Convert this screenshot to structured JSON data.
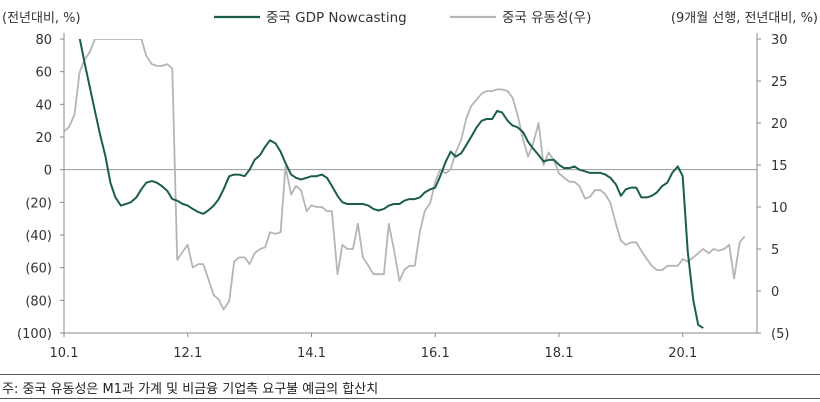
{
  "chart_data": {
    "type": "line",
    "left_axis_label": "(전년대비, %)",
    "right_axis_label": "(9개월 선행, 전년대비, %)",
    "x_tick_labels": [
      "10.1",
      "12.1",
      "14.1",
      "16.1",
      "18.1",
      "20.1"
    ],
    "x_range": [
      2010.0,
      2021.2
    ],
    "y_left_ticks": [
      "80",
      "60",
      "40",
      "20",
      "0",
      "(20)",
      "(40)",
      "(60)",
      "(80)",
      "(100)"
    ],
    "y_left_range": [
      -100,
      80
    ],
    "y_right_ticks": [
      "30",
      "25",
      "20",
      "15",
      "10",
      "5",
      "0",
      "(5)"
    ],
    "y_right_range": [
      -5,
      30
    ],
    "grid": false,
    "legend_position": "top",
    "series": [
      {
        "name": "중국 GDP Nowcasting",
        "axis": "left",
        "color": "#1b5e4a",
        "points": [
          [
            2010.25,
            81
          ],
          [
            2010.33,
            66
          ],
          [
            2010.42,
            50
          ],
          [
            2010.5,
            36
          ],
          [
            2010.58,
            22
          ],
          [
            2010.67,
            8
          ],
          [
            2010.75,
            -8
          ],
          [
            2010.83,
            -17
          ],
          [
            2010.92,
            -22
          ],
          [
            2011.0,
            -21
          ],
          [
            2011.08,
            -20
          ],
          [
            2011.17,
            -17
          ],
          [
            2011.25,
            -12
          ],
          [
            2011.33,
            -8
          ],
          [
            2011.42,
            -7
          ],
          [
            2011.5,
            -8
          ],
          [
            2011.58,
            -10
          ],
          [
            2011.67,
            -13
          ],
          [
            2011.75,
            -18
          ],
          [
            2011.83,
            -19
          ],
          [
            2011.92,
            -21
          ],
          [
            2012.0,
            -22
          ],
          [
            2012.08,
            -24
          ],
          [
            2012.17,
            -26
          ],
          [
            2012.25,
            -27
          ],
          [
            2012.33,
            -25
          ],
          [
            2012.42,
            -22
          ],
          [
            2012.5,
            -18
          ],
          [
            2012.58,
            -12
          ],
          [
            2012.67,
            -4
          ],
          [
            2012.75,
            -3
          ],
          [
            2012.83,
            -3
          ],
          [
            2012.92,
            -4
          ],
          [
            2013.0,
            0
          ],
          [
            2013.08,
            6
          ],
          [
            2013.17,
            9
          ],
          [
            2013.25,
            14
          ],
          [
            2013.33,
            18
          ],
          [
            2013.42,
            16
          ],
          [
            2013.5,
            11
          ],
          [
            2013.58,
            4
          ],
          [
            2013.67,
            -3
          ],
          [
            2013.75,
            -5
          ],
          [
            2013.83,
            -6
          ],
          [
            2013.92,
            -5
          ],
          [
            2014.0,
            -4
          ],
          [
            2014.08,
            -4
          ],
          [
            2014.17,
            -3
          ],
          [
            2014.25,
            -5
          ],
          [
            2014.33,
            -10
          ],
          [
            2014.42,
            -16
          ],
          [
            2014.5,
            -20
          ],
          [
            2014.58,
            -21
          ],
          [
            2014.67,
            -21
          ],
          [
            2014.75,
            -21
          ],
          [
            2014.83,
            -21
          ],
          [
            2014.92,
            -22
          ],
          [
            2015.0,
            -24
          ],
          [
            2015.08,
            -25
          ],
          [
            2015.17,
            -24
          ],
          [
            2015.25,
            -22
          ],
          [
            2015.33,
            -21
          ],
          [
            2015.42,
            -21
          ],
          [
            2015.5,
            -19
          ],
          [
            2015.58,
            -18
          ],
          [
            2015.67,
            -18
          ],
          [
            2015.75,
            -17
          ],
          [
            2015.83,
            -14
          ],
          [
            2015.92,
            -12
          ],
          [
            2016.0,
            -11
          ],
          [
            2016.08,
            -4
          ],
          [
            2016.17,
            5
          ],
          [
            2016.25,
            11
          ],
          [
            2016.33,
            8
          ],
          [
            2016.42,
            10
          ],
          [
            2016.5,
            15
          ],
          [
            2016.58,
            20
          ],
          [
            2016.67,
            26
          ],
          [
            2016.75,
            30
          ],
          [
            2016.83,
            31
          ],
          [
            2016.92,
            31
          ],
          [
            2017.0,
            36
          ],
          [
            2017.08,
            35
          ],
          [
            2017.17,
            30
          ],
          [
            2017.25,
            27
          ],
          [
            2017.33,
            26
          ],
          [
            2017.42,
            23
          ],
          [
            2017.5,
            17
          ],
          [
            2017.58,
            13
          ],
          [
            2017.67,
            9
          ],
          [
            2017.75,
            5
          ],
          [
            2017.83,
            6
          ],
          [
            2017.92,
            6
          ],
          [
            2018.0,
            3
          ],
          [
            2018.08,
            1
          ],
          [
            2018.17,
            1
          ],
          [
            2018.25,
            2
          ],
          [
            2018.33,
            0
          ],
          [
            2018.42,
            -1
          ],
          [
            2018.5,
            -2
          ],
          [
            2018.58,
            -2
          ],
          [
            2018.67,
            -2
          ],
          [
            2018.75,
            -3
          ],
          [
            2018.83,
            -5
          ],
          [
            2018.92,
            -9
          ],
          [
            2019.0,
            -16
          ],
          [
            2019.08,
            -12
          ],
          [
            2019.17,
            -11
          ],
          [
            2019.25,
            -11
          ],
          [
            2019.33,
            -17
          ],
          [
            2019.42,
            -17
          ],
          [
            2019.5,
            -16
          ],
          [
            2019.58,
            -14
          ],
          [
            2019.67,
            -10
          ],
          [
            2019.75,
            -8
          ],
          [
            2019.83,
            -2
          ],
          [
            2019.92,
            2
          ],
          [
            2020.0,
            -4
          ],
          [
            2020.08,
            -50
          ],
          [
            2020.17,
            -80
          ],
          [
            2020.25,
            -95
          ],
          [
            2020.33,
            -97
          ]
        ]
      },
      {
        "name": "중국 유동성(우)",
        "axis": "right",
        "color": "#b5b5b5",
        "points": [
          [
            2010.0,
            19
          ],
          [
            2010.08,
            19.5
          ],
          [
            2010.17,
            21
          ],
          [
            2010.25,
            26
          ],
          [
            2010.33,
            27.5
          ],
          [
            2010.42,
            28.5
          ],
          [
            2010.5,
            30
          ],
          [
            2011.25,
            30
          ],
          [
            2011.33,
            28
          ],
          [
            2011.42,
            27
          ],
          [
            2011.5,
            26.8
          ],
          [
            2011.58,
            26.8
          ],
          [
            2011.67,
            27
          ],
          [
            2011.75,
            26.5
          ],
          [
            2011.83,
            3.7
          ],
          [
            2011.92,
            4.7
          ],
          [
            2012.0,
            5.5
          ],
          [
            2012.08,
            2.8
          ],
          [
            2012.17,
            3.2
          ],
          [
            2012.25,
            3.2
          ],
          [
            2012.33,
            1.5
          ],
          [
            2012.42,
            -0.5
          ],
          [
            2012.5,
            -1
          ],
          [
            2012.58,
            -2.2
          ],
          [
            2012.67,
            -1.2
          ],
          [
            2012.75,
            3.5
          ],
          [
            2012.83,
            4
          ],
          [
            2012.92,
            4
          ],
          [
            2013.0,
            3.2
          ],
          [
            2013.08,
            4.5
          ],
          [
            2013.17,
            5
          ],
          [
            2013.25,
            5.2
          ],
          [
            2013.33,
            7
          ],
          [
            2013.42,
            6.8
          ],
          [
            2013.5,
            7
          ],
          [
            2013.58,
            14.8
          ],
          [
            2013.67,
            11.5
          ],
          [
            2013.75,
            12.5
          ],
          [
            2013.83,
            12
          ],
          [
            2013.92,
            9.5
          ],
          [
            2014.0,
            10.2
          ],
          [
            2014.08,
            10
          ],
          [
            2014.17,
            10
          ],
          [
            2014.25,
            9.5
          ],
          [
            2014.33,
            9.5
          ],
          [
            2014.42,
            2
          ],
          [
            2014.5,
            5.5
          ],
          [
            2014.58,
            5
          ],
          [
            2014.67,
            5
          ],
          [
            2014.75,
            8
          ],
          [
            2014.83,
            4
          ],
          [
            2014.92,
            3
          ],
          [
            2015.0,
            2
          ],
          [
            2015.08,
            2
          ],
          [
            2015.17,
            2
          ],
          [
            2015.25,
            8
          ],
          [
            2015.33,
            5
          ],
          [
            2015.42,
            1.2
          ],
          [
            2015.5,
            2.5
          ],
          [
            2015.58,
            3
          ],
          [
            2015.67,
            3
          ],
          [
            2015.75,
            7
          ],
          [
            2015.83,
            9.5
          ],
          [
            2015.92,
            10.5
          ],
          [
            2016.0,
            13
          ],
          [
            2016.08,
            14.5
          ],
          [
            2016.17,
            14
          ],
          [
            2016.25,
            14.5
          ],
          [
            2016.33,
            16.5
          ],
          [
            2016.42,
            18
          ],
          [
            2016.5,
            20.5
          ],
          [
            2016.58,
            22
          ],
          [
            2016.67,
            22.8
          ],
          [
            2016.75,
            23.5
          ],
          [
            2016.83,
            23.8
          ],
          [
            2016.92,
            23.8
          ],
          [
            2017.0,
            24
          ],
          [
            2017.08,
            24
          ],
          [
            2017.17,
            23.8
          ],
          [
            2017.25,
            23
          ],
          [
            2017.33,
            21
          ],
          [
            2017.42,
            18
          ],
          [
            2017.5,
            16
          ],
          [
            2017.58,
            17.5
          ],
          [
            2017.67,
            20
          ],
          [
            2017.75,
            15
          ],
          [
            2017.83,
            16.5
          ],
          [
            2017.92,
            15.5
          ],
          [
            2018.0,
            14
          ],
          [
            2018.08,
            13.5
          ],
          [
            2018.17,
            13
          ],
          [
            2018.25,
            13
          ],
          [
            2018.33,
            12.5
          ],
          [
            2018.42,
            11
          ],
          [
            2018.5,
            11.2
          ],
          [
            2018.58,
            12
          ],
          [
            2018.67,
            12
          ],
          [
            2018.75,
            11.5
          ],
          [
            2018.83,
            10.5
          ],
          [
            2018.92,
            8
          ],
          [
            2019.0,
            6
          ],
          [
            2019.08,
            5.5
          ],
          [
            2019.17,
            5.8
          ],
          [
            2019.25,
            5.8
          ],
          [
            2019.33,
            4.8
          ],
          [
            2019.42,
            3.8
          ],
          [
            2019.5,
            3
          ],
          [
            2019.58,
            2.5
          ],
          [
            2019.67,
            2.5
          ],
          [
            2019.75,
            3
          ],
          [
            2019.83,
            3
          ],
          [
            2019.92,
            3
          ],
          [
            2020.0,
            3.8
          ],
          [
            2020.08,
            3.5
          ],
          [
            2020.17,
            4
          ],
          [
            2020.25,
            4.5
          ],
          [
            2020.33,
            5
          ],
          [
            2020.42,
            4.5
          ],
          [
            2020.5,
            5
          ],
          [
            2020.58,
            4.8
          ],
          [
            2020.67,
            5
          ],
          [
            2020.75,
            5.5
          ],
          [
            2020.83,
            1.5
          ],
          [
            2020.92,
            5.8
          ],
          [
            2021.0,
            6.5
          ]
        ]
      }
    ]
  },
  "footnote": "주: 중국 유동성은 M1과 가계 및 비금융 기업측 요구불 예금의 합산치"
}
